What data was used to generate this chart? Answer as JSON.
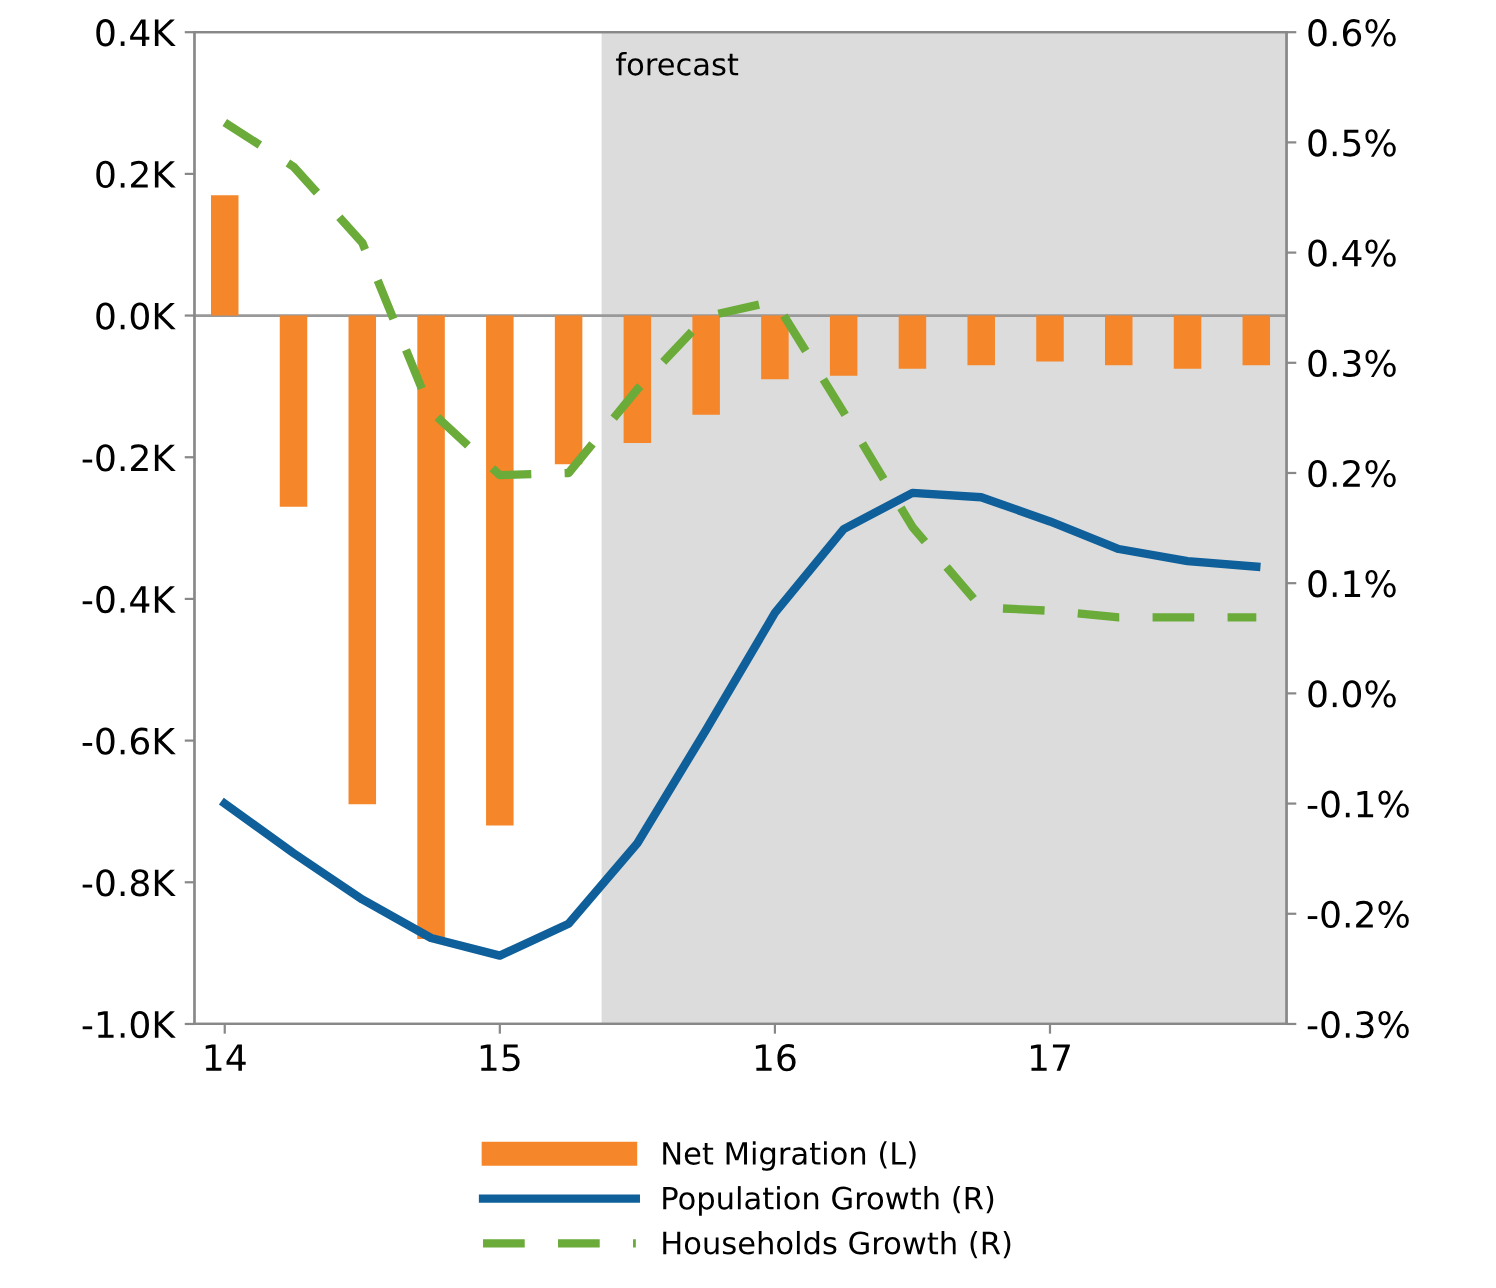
{
  "chart_data": {
    "type": "bar",
    "x": [
      14.0,
      14.25,
      14.5,
      14.75,
      15.0,
      15.25,
      15.5,
      15.75,
      16.0,
      16.25,
      16.5,
      16.75,
      17.0,
      17.25,
      17.5,
      17.75
    ],
    "series": [
      {
        "name": "Net Migration (L)",
        "color": "#f5862a",
        "values": [
          0.17,
          -0.27,
          -0.69,
          -0.88,
          -0.72,
          -0.21,
          -0.18,
          -0.14,
          -0.09,
          -0.085,
          -0.075,
          -0.07,
          -0.065,
          -0.07,
          -0.075,
          -0.07
        ]
      },
      {
        "name": "Population Growth (R)",
        "type": "line",
        "axis": "y2",
        "line_style": "solid",
        "color": "#0e5f9a",
        "values": [
          -0.1,
          -0.145,
          -0.187,
          -0.222,
          -0.238,
          -0.209,
          -0.136,
          -0.033,
          0.073,
          0.149,
          0.182,
          0.178,
          0.156,
          0.131,
          0.12,
          0.115
        ]
      },
      {
        "name": "Households Growth (R)",
        "type": "line",
        "axis": "y2",
        "line_style": "dashed",
        "color": "#6aab3a",
        "values": [
          0.518,
          0.478,
          0.409,
          0.256,
          0.198,
          0.2,
          0.276,
          0.342,
          0.356,
          0.255,
          0.151,
          0.078,
          0.075,
          0.069,
          0.069,
          0.069
        ]
      }
    ],
    "xlim": [
      13.89,
      17.86
    ],
    "xticks": [
      14,
      15,
      16,
      17
    ],
    "ylim": [
      -1.0,
      0.4
    ],
    "yticks": [
      {
        "value": -1.0,
        "label": "-1.0K"
      },
      {
        "value": -0.8,
        "label": "-0.8K"
      },
      {
        "value": -0.6,
        "label": "-0.6K"
      },
      {
        "value": -0.4,
        "label": "-0.4K"
      },
      {
        "value": -0.2,
        "label": "-0.2K"
      },
      {
        "value": 0.0,
        "label": "0.0K"
      },
      {
        "value": 0.2,
        "label": "0.2K"
      },
      {
        "value": 0.4,
        "label": "0.4K"
      }
    ],
    "y2lim": [
      -0.3,
      0.6
    ],
    "y2ticks": [
      {
        "value": -0.3,
        "label": "-0.3%"
      },
      {
        "value": -0.2,
        "label": "-0.2%"
      },
      {
        "value": -0.1,
        "label": "-0.1%"
      },
      {
        "value": 0.0,
        "label": "0.0%"
      },
      {
        "value": 0.1,
        "label": "0.1%"
      },
      {
        "value": 0.2,
        "label": "0.2%"
      },
      {
        "value": 0.3,
        "label": "0.3%"
      },
      {
        "value": 0.4,
        "label": "0.4%"
      },
      {
        "value": 0.5,
        "label": "0.5%"
      },
      {
        "value": 0.6,
        "label": "0.6%"
      }
    ],
    "bands": [
      {
        "axis": "x",
        "from": 15.37,
        "to": 17.86,
        "label": "forecast",
        "color": "#dcdcdc"
      }
    ],
    "ref_lines": [
      {
        "axis": "y",
        "value": 0.0,
        "color": "#999999"
      }
    ],
    "grid": false,
    "legend": "bottom"
  }
}
